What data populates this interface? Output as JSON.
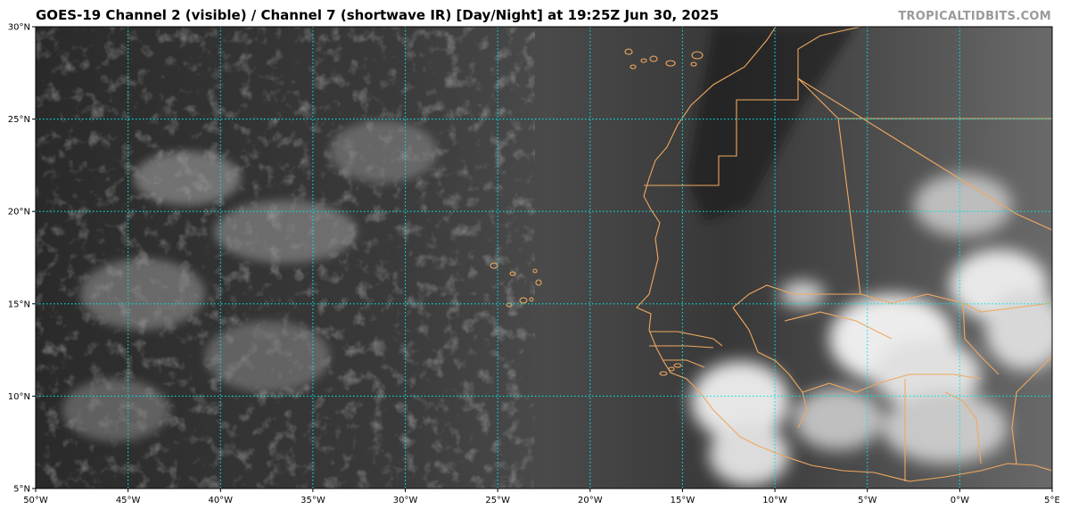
{
  "header": {
    "title": "GOES-19 Channel 2 (visible) / Channel 7 (shortwave IR) [Day/Night] at 19:25Z Jun 30, 2025",
    "credit": "TROPICALTIDBITS.COM"
  },
  "map": {
    "projection": "equirectangular",
    "lon_range": [
      -50,
      5
    ],
    "lat_range": [
      5,
      30
    ],
    "gridline_color": "#00e5e5",
    "coastline_color": "#f0a860",
    "lat_ticks": [
      {
        "value": 30,
        "label": "30°N"
      },
      {
        "value": 25,
        "label": "25°N"
      },
      {
        "value": 20,
        "label": "20°N"
      },
      {
        "value": 15,
        "label": "15°N"
      },
      {
        "value": 10,
        "label": "10°N"
      },
      {
        "value": 5,
        "label": "5°N"
      }
    ],
    "lon_ticks": [
      {
        "value": -50,
        "label": "50°W"
      },
      {
        "value": -45,
        "label": "45°W"
      },
      {
        "value": -40,
        "label": "40°W"
      },
      {
        "value": -35,
        "label": "35°W"
      },
      {
        "value": -30,
        "label": "30°W"
      },
      {
        "value": -25,
        "label": "25°W"
      },
      {
        "value": -20,
        "label": "20°W"
      },
      {
        "value": -15,
        "label": "15°W"
      },
      {
        "value": -10,
        "label": "10°W"
      },
      {
        "value": -5,
        "label": "5°W"
      },
      {
        "value": 0,
        "label": "0°W"
      },
      {
        "value": 5,
        "label": "5°E"
      }
    ]
  }
}
